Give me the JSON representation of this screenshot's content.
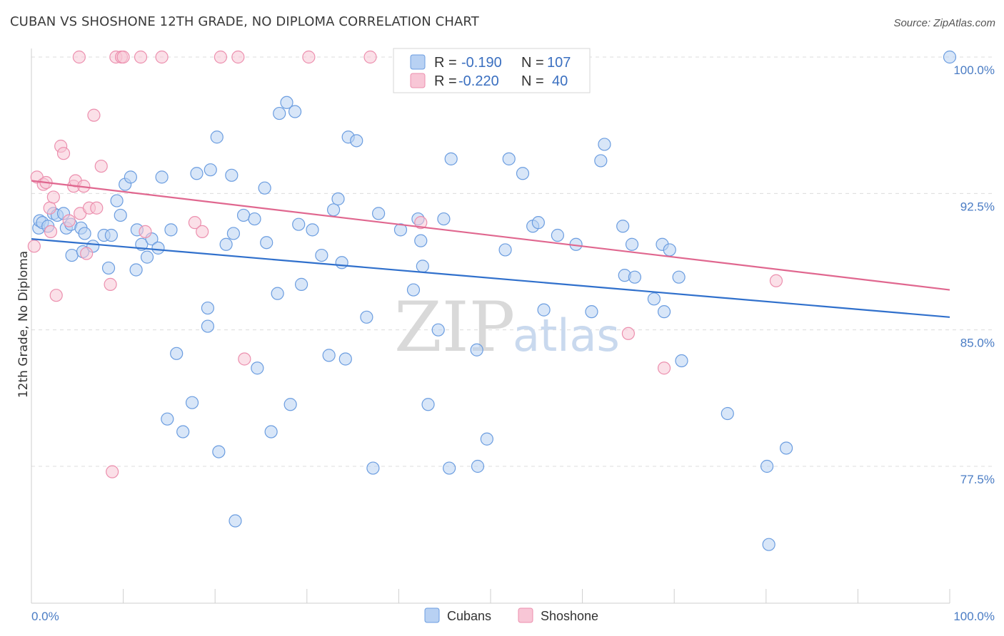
{
  "title": "CUBAN VS SHOSHONE 12TH GRADE, NO DIPLOMA CORRELATION CHART",
  "source": "Source: ZipAtlas.com",
  "watermark": {
    "zip": "ZIP",
    "atlas": "atlas"
  },
  "colors": {
    "cubans": "#6b9de0",
    "cubans_fill": "#b8d1f3",
    "cubans_line": "#3070cc",
    "shoshone": "#ec8fae",
    "shoshone_fill": "#f8c6d6",
    "shoshone_line": "#e0678f"
  },
  "legend": {
    "r_label": "R =",
    "n_label": "N =",
    "cubans_r": "-0.190",
    "cubans_n": "107",
    "shoshone_r": "-0.220",
    "shoshone_n": "40"
  },
  "bottom_legend": {
    "cubans": "Cubans",
    "shoshone": "Shoshone"
  },
  "chart_data": {
    "type": "scatter",
    "title": "CUBAN VS SHOSHONE 12TH GRADE, NO DIPLOMA CORRELATION CHART",
    "xlabel": "",
    "ylabel": "12th Grade, No Diploma",
    "xlim": [
      0,
      100
    ],
    "ylim": [
      71.2,
      100.8
    ],
    "x_tick_labels": [
      "0.0%",
      "100.0%"
    ],
    "y_ticks": [
      100,
      92.5,
      85,
      77.5
    ],
    "y_tick_labels": [
      "100.0%",
      "92.5%",
      "85.0%",
      "77.5%"
    ],
    "grid": "horizontal dashed",
    "legend_position": "top-center",
    "series": [
      {
        "name": "Cubans",
        "trend": {
          "x": [
            0,
            100
          ],
          "y": [
            90.0,
            85.7
          ]
        },
        "points": [
          [
            0.8,
            90.6
          ],
          [
            0.9,
            91.0
          ],
          [
            1.2,
            90.9
          ],
          [
            1.8,
            90.7
          ],
          [
            2.4,
            91.4
          ],
          [
            2.8,
            91.3
          ],
          [
            3.5,
            91.4
          ],
          [
            3.8,
            90.6
          ],
          [
            4.3,
            90.8
          ],
          [
            5.4,
            90.6
          ],
          [
            5.8,
            90.3
          ],
          [
            4.4,
            89.1
          ],
          [
            5.6,
            89.3
          ],
          [
            6.7,
            89.6
          ],
          [
            7.9,
            90.2
          ],
          [
            8.7,
            90.2
          ],
          [
            9.3,
            92.1
          ],
          [
            9.7,
            91.3
          ],
          [
            10.2,
            93.0
          ],
          [
            10.8,
            93.4
          ],
          [
            11.5,
            90.5
          ],
          [
            12.0,
            89.7
          ],
          [
            12.6,
            89.0
          ],
          [
            13.1,
            90.0
          ],
          [
            13.8,
            89.5
          ],
          [
            14.2,
            93.4
          ],
          [
            15.2,
            90.5
          ],
          [
            8.4,
            88.4
          ],
          [
            11.4,
            88.3
          ],
          [
            15.8,
            83.7
          ],
          [
            18.0,
            93.6
          ],
          [
            19.2,
            86.2
          ],
          [
            19.2,
            85.2
          ],
          [
            19.5,
            93.8
          ],
          [
            20.2,
            95.6
          ],
          [
            21.2,
            89.7
          ],
          [
            21.8,
            93.5
          ],
          [
            22.0,
            90.3
          ],
          [
            23.1,
            91.3
          ],
          [
            24.3,
            91.1
          ],
          [
            24.6,
            82.9
          ],
          [
            25.4,
            92.8
          ],
          [
            25.6,
            89.8
          ],
          [
            26.8,
            87.0
          ],
          [
            27.0,
            96.9
          ],
          [
            27.8,
            97.5
          ],
          [
            28.7,
            97.0
          ],
          [
            29.1,
            90.8
          ],
          [
            29.4,
            87.5
          ],
          [
            30.6,
            90.5
          ],
          [
            31.6,
            89.1
          ],
          [
            32.4,
            83.6
          ],
          [
            32.9,
            91.6
          ],
          [
            33.4,
            92.2
          ],
          [
            33.8,
            88.7
          ],
          [
            34.2,
            83.4
          ],
          [
            34.5,
            95.6
          ],
          [
            35.4,
            95.4
          ],
          [
            36.5,
            85.7
          ],
          [
            37.8,
            91.4
          ],
          [
            40.2,
            90.5
          ],
          [
            41.6,
            87.2
          ],
          [
            42.1,
            91.1
          ],
          [
            42.4,
            89.9
          ],
          [
            42.6,
            88.5
          ],
          [
            43.2,
            80.9
          ],
          [
            44.3,
            85.0
          ],
          [
            45.7,
            94.4
          ],
          [
            48.5,
            83.9
          ],
          [
            49.6,
            79.0
          ],
          [
            51.6,
            89.4
          ],
          [
            52.0,
            94.4
          ],
          [
            53.5,
            93.6
          ],
          [
            54.6,
            90.7
          ],
          [
            55.2,
            90.9
          ],
          [
            55.8,
            86.1
          ],
          [
            57.3,
            90.2
          ],
          [
            59.3,
            89.7
          ],
          [
            61.0,
            86.0
          ],
          [
            62.0,
            94.3
          ],
          [
            62.4,
            95.2
          ],
          [
            64.4,
            90.7
          ],
          [
            64.6,
            88.0
          ],
          [
            65.4,
            89.7
          ],
          [
            65.7,
            87.9
          ],
          [
            67.8,
            86.7
          ],
          [
            68.7,
            89.7
          ],
          [
            68.9,
            86.0
          ],
          [
            69.5,
            89.4
          ],
          [
            70.5,
            87.9
          ],
          [
            70.8,
            83.3
          ],
          [
            75.8,
            80.4
          ],
          [
            80.1,
            77.5
          ],
          [
            80.3,
            73.2
          ],
          [
            82.2,
            78.5
          ],
          [
            100.0,
            100.0
          ],
          [
            14.8,
            80.1
          ],
          [
            16.5,
            79.4
          ],
          [
            17.5,
            81.0
          ],
          [
            20.4,
            78.3
          ],
          [
            22.2,
            74.5
          ],
          [
            26.1,
            79.4
          ],
          [
            28.2,
            80.9
          ],
          [
            37.2,
            77.4
          ],
          [
            45.5,
            77.4
          ],
          [
            48.6,
            77.5
          ],
          [
            44.9,
            91.1
          ]
        ]
      },
      {
        "name": "Shoshone",
        "trend": {
          "x": [
            0,
            100
          ],
          "y": [
            93.2,
            87.2
          ]
        },
        "points": [
          [
            0.3,
            89.6
          ],
          [
            0.6,
            93.4
          ],
          [
            1.3,
            93.0
          ],
          [
            1.6,
            93.1
          ],
          [
            2.0,
            91.7
          ],
          [
            2.1,
            90.4
          ],
          [
            2.4,
            92.3
          ],
          [
            2.7,
            86.9
          ],
          [
            3.2,
            95.1
          ],
          [
            3.5,
            94.7
          ],
          [
            4.1,
            91.0
          ],
          [
            4.6,
            92.9
          ],
          [
            4.8,
            93.2
          ],
          [
            5.3,
            91.4
          ],
          [
            5.7,
            92.9
          ],
          [
            6.0,
            89.2
          ],
          [
            6.3,
            91.7
          ],
          [
            6.8,
            96.8
          ],
          [
            7.1,
            91.7
          ],
          [
            7.6,
            94.0
          ],
          [
            8.6,
            87.5
          ],
          [
            8.8,
            77.2
          ],
          [
            9.2,
            100.0
          ],
          [
            9.8,
            100.0
          ],
          [
            10.0,
            100.0
          ],
          [
            11.9,
            100.0
          ],
          [
            12.4,
            90.4
          ],
          [
            14.2,
            100.0
          ],
          [
            17.8,
            90.9
          ],
          [
            18.6,
            90.4
          ],
          [
            20.6,
            100.0
          ],
          [
            22.5,
            100.0
          ],
          [
            23.2,
            83.4
          ],
          [
            30.2,
            100.0
          ],
          [
            36.9,
            100.0
          ],
          [
            42.4,
            90.9
          ],
          [
            65.0,
            84.8
          ],
          [
            68.9,
            82.9
          ],
          [
            81.1,
            87.7
          ],
          [
            5.2,
            100.0
          ]
        ]
      }
    ]
  }
}
